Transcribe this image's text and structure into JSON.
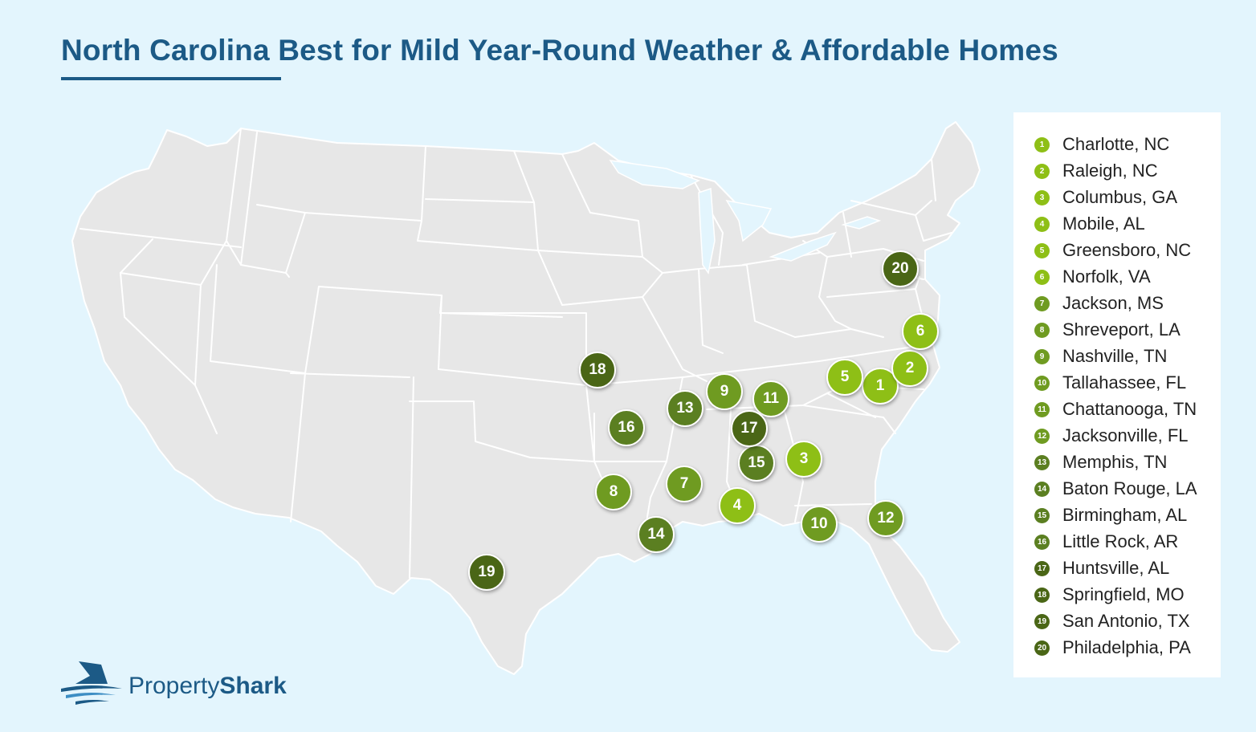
{
  "title": "North Carolina Best for Mild Year-Round Weather & Affordable Homes",
  "colors": {
    "background": "#e3f5fd",
    "land": "#e7e7e7",
    "border": "#ffffff",
    "title": "#1c5a86",
    "rank_1_6": "#8ebf16",
    "rank_7_12": "#6f9b21",
    "rank_13_16": "#5b7f21",
    "rank_17_20": "#4a6616"
  },
  "cities": [
    {
      "rank": "1",
      "label": "Charlotte, NC"
    },
    {
      "rank": "2",
      "label": "Raleigh, NC"
    },
    {
      "rank": "3",
      "label": "Columbus, GA"
    },
    {
      "rank": "4",
      "label": "Mobile, AL"
    },
    {
      "rank": "5",
      "label": "Greensboro, NC"
    },
    {
      "rank": "6",
      "label": "Norfolk, VA"
    },
    {
      "rank": "7",
      "label": "Jackson, MS"
    },
    {
      "rank": "8",
      "label": "Shreveport, LA"
    },
    {
      "rank": "9",
      "label": "Nashville, TN"
    },
    {
      "rank": "10",
      "label": "Tallahassee, FL"
    },
    {
      "rank": "11",
      "label": "Chattanooga, TN"
    },
    {
      "rank": "12",
      "label": "Jacksonville, FL"
    },
    {
      "rank": "13",
      "label": "Memphis, TN"
    },
    {
      "rank": "14",
      "label": "Baton Rouge, LA"
    },
    {
      "rank": "15",
      "label": "Birmingham, AL"
    },
    {
      "rank": "16",
      "label": "Little Rock, AR"
    },
    {
      "rank": "17",
      "label": "Huntsville, AL"
    },
    {
      "rank": "18",
      "label": "Springfield, MO"
    },
    {
      "rank": "19",
      "label": "San Antonio, TX"
    },
    {
      "rank": "20",
      "label": "Philadelphia, PA"
    }
  ],
  "logo": {
    "icon": "shark-fin-icon",
    "brand_regular": "Property",
    "brand_bold": "Shark"
  }
}
